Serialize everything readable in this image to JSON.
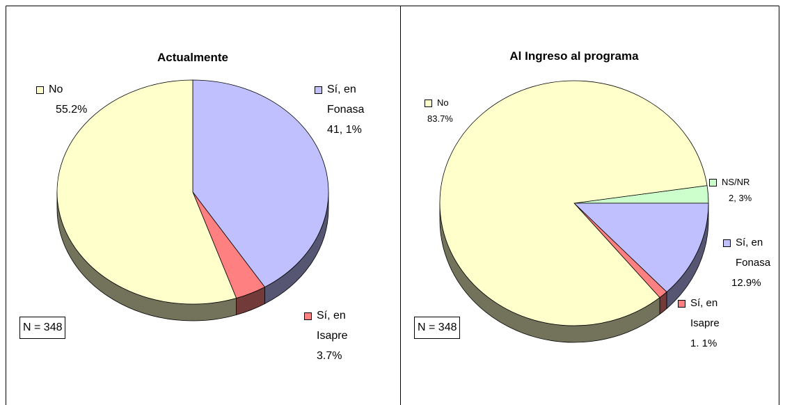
{
  "chart_data": [
    {
      "type": "pie",
      "title": "Actualmente",
      "categories": [
        "Sí, en Fonasa",
        "Sí, en Isapre",
        "No"
      ],
      "values": [
        41.1,
        3.7,
        55.2
      ],
      "value_labels": [
        "41, 1%",
        "3.7%",
        "55.2%"
      ],
      "colors": [
        "#c0c0ff",
        "#ff8080",
        "#ffffcc"
      ],
      "annotation": "N = 348"
    },
    {
      "type": "pie",
      "title": "Al Ingreso al programa",
      "categories": [
        "NS/NR",
        "Sí, en Fonasa",
        "Sí, en Isapre",
        "No"
      ],
      "values": [
        2.3,
        12.9,
        1.1,
        83.7
      ],
      "value_labels": [
        "2, 3%",
        "12.9%",
        "1. 1%",
        "83.7%"
      ],
      "colors": [
        "#ccffcc",
        "#c0c0ff",
        "#ff8080",
        "#ffffcc"
      ],
      "annotation": "N = 348"
    }
  ]
}
